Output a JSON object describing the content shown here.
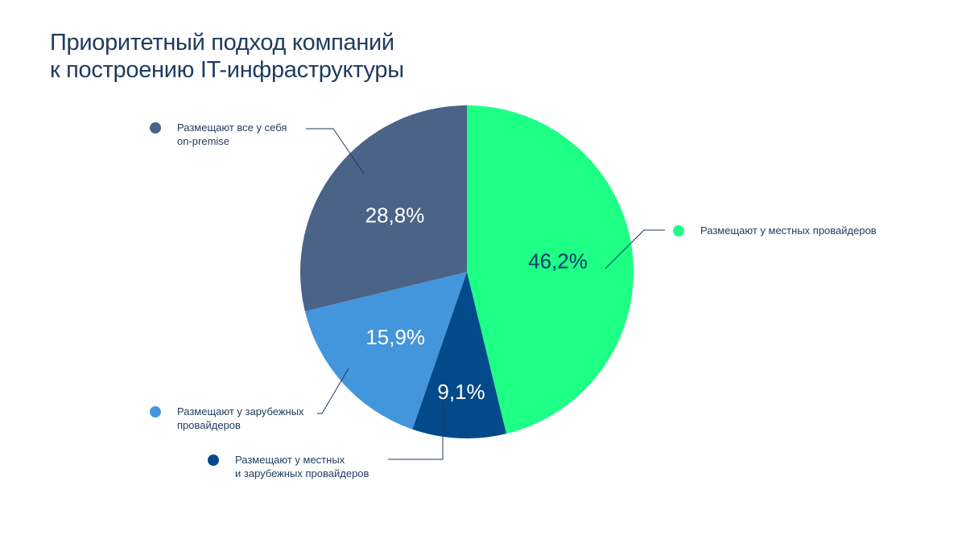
{
  "title": {
    "line1": "Приоритетный подход компаний",
    "line2": "к построению IT-инфраструктуры"
  },
  "chart_data": {
    "type": "pie",
    "title": "Приоритетный подход компаний к построению IT-инфраструктуры",
    "unit": "%",
    "slices": [
      {
        "key": "local",
        "lines": [
          "Размещают у местных провайдеров"
        ],
        "value": 46.2,
        "value_label": "46,2%",
        "color": "#1dff85",
        "value_label_color": "#0f3a6e"
      },
      {
        "key": "mixed",
        "lines": [
          "Размещают у местных",
          "и зарубежных провайдеров"
        ],
        "value": 9.1,
        "value_label": "9,1%",
        "color": "#034a8a",
        "value_label_color": "#ffffff"
      },
      {
        "key": "foreign",
        "lines": [
          "Размещают у зарубежных",
          "провайдеров"
        ],
        "value": 15.9,
        "value_label": "15,9%",
        "color": "#4396db",
        "value_label_color": "#ffffff"
      },
      {
        "key": "onprem",
        "lines": [
          "Размещают все у себя",
          "on-premise"
        ],
        "value": 28.8,
        "value_label": "28,8%",
        "color": "#4a6387",
        "value_label_color": "#ffffff"
      }
    ]
  }
}
